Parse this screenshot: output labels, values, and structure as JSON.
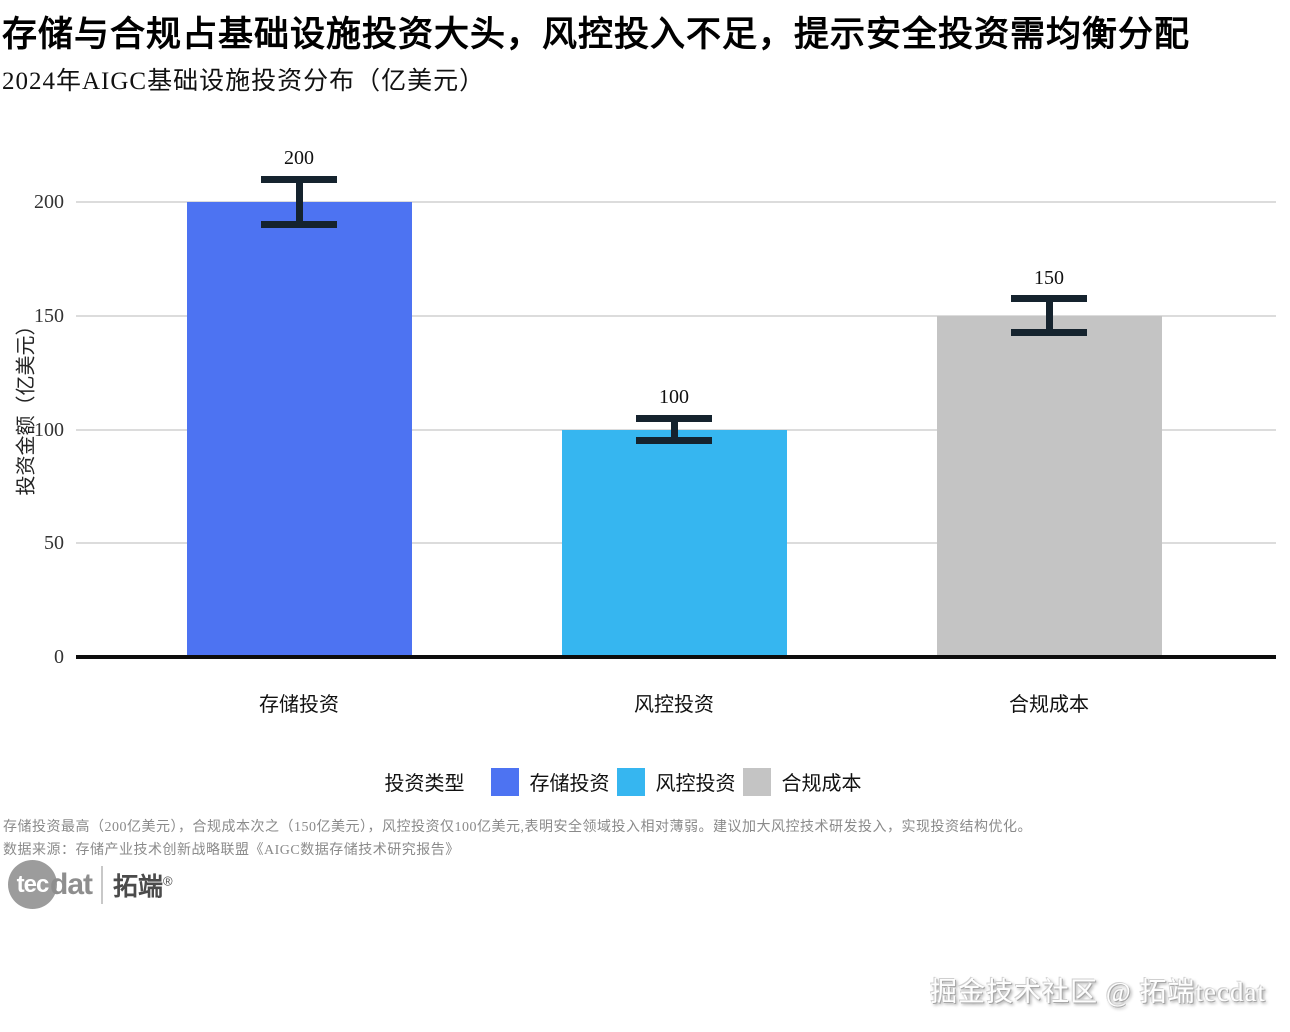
{
  "header": {
    "title": "存储与合规占基础设施投资大头，风控投入不足，提示安全投资需均衡分配",
    "subtitle": "2024年AIGC基础设施投资分布（亿美元）"
  },
  "chart_data": {
    "type": "bar",
    "title": "2024年AIGC基础设施投资分布（亿美元）",
    "categories": [
      "存储投资",
      "风控投资",
      "合规成本"
    ],
    "values": [
      200,
      100,
      150
    ],
    "error_bars": [
      10,
      5,
      7.5
    ],
    "bar_colors": [
      "#4D73F2",
      "#36B6F0",
      "#C4C4C4"
    ],
    "error_bar_color": "#15232E",
    "xlabel": "",
    "ylabel": "投资金额（亿美元）",
    "yticks": [
      0,
      50,
      100,
      150,
      200
    ],
    "ylim": [
      0,
      227
    ],
    "grid": "horizontal-light-gray",
    "legend": {
      "title": "投资类型",
      "position": "bottom",
      "items": [
        {
          "label": "存储投资",
          "color": "#4D73F2"
        },
        {
          "label": "风控投资",
          "color": "#36B6F0"
        },
        {
          "label": "合规成本",
          "color": "#C4C4C4"
        }
      ]
    }
  },
  "footer": {
    "note": "存储投资最高（200亿美元），合规成本次之（150亿美元），风控投资仅100亿美元,表明安全领域投入相对薄弱。建议加大风控技术研发投入，实现投资结构优化。",
    "source": "数据来源：存储产业技术创新战略联盟《AIGC数据存储技术研究报告》"
  },
  "branding": {
    "logo_bubble_text": "tec",
    "logo_text": "dat",
    "logo_cn": "拓端",
    "logo_reg_mark": "®",
    "watermark": "掘金技术社区 @ 拓端tecdat"
  }
}
